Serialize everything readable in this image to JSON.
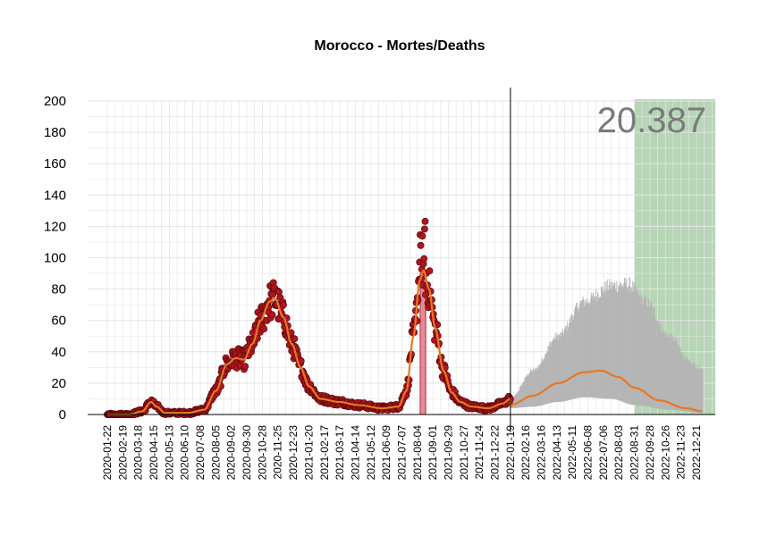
{
  "chart_data": {
    "type": "scatter",
    "title": "Morocco - Mortes/Deaths",
    "xlabel": "",
    "ylabel": "",
    "ylim": [
      0,
      200
    ],
    "yticks": [
      0,
      20,
      40,
      60,
      80,
      100,
      120,
      140,
      160,
      180,
      200
    ],
    "x_range": [
      "2020-01-22",
      "2023-01-24"
    ],
    "x_ticks": [
      "2020-01-22",
      "2020-02-19",
      "2020-03-18",
      "2020-04-15",
      "2020-05-13",
      "2020-06-10",
      "2020-07-08",
      "2020-08-05",
      "2020-09-02",
      "2020-09-30",
      "2020-10-28",
      "2020-11-25",
      "2020-12-23",
      "2021-01-20",
      "2021-02-17",
      "2021-03-17",
      "2021-04-14",
      "2021-05-12",
      "2021-06-09",
      "2021-07-07",
      "2021-08-04",
      "2021-09-01",
      "2021-09-29",
      "2021-10-27",
      "2021-11-24",
      "2021-12-22",
      "2022-01-19",
      "2022-02-16",
      "2022-03-16",
      "2022-04-13",
      "2022-05-11",
      "2022-06-08",
      "2022-07-06",
      "2022-08-03",
      "2022-08-31",
      "2022-09-28",
      "2022-10-26",
      "2022-11-23",
      "2022-12-21"
    ],
    "grid": true,
    "today_line": "2022-01-19",
    "highlight_bar": {
      "start": "2021-08-09",
      "end": "2021-08-19",
      "value": 90,
      "color": "#e08090"
    },
    "forecast_region": {
      "start": "2022-08-31",
      "end": "2023-01-24",
      "color": "#a9cfa9"
    },
    "forecast_total_label": "20.387",
    "colors": {
      "points": "#b0151e",
      "points_outline": "#5a0a0a",
      "smooth": "#e87722",
      "band": "#b5b5b5",
      "grid": "#e5e5e5"
    },
    "observed_anchors": [
      [
        "2020-01-22",
        0
      ],
      [
        "2020-03-01",
        0
      ],
      [
        "2020-03-25",
        2
      ],
      [
        "2020-04-10",
        8
      ],
      [
        "2020-04-20",
        5
      ],
      [
        "2020-05-05",
        1
      ],
      [
        "2020-06-15",
        1
      ],
      [
        "2020-07-15",
        3
      ],
      [
        "2020-08-05",
        15
      ],
      [
        "2020-08-25",
        32
      ],
      [
        "2020-09-10",
        36
      ],
      [
        "2020-09-25",
        35
      ],
      [
        "2020-10-10",
        45
      ],
      [
        "2020-10-25",
        60
      ],
      [
        "2020-11-10",
        72
      ],
      [
        "2020-11-20",
        74
      ],
      [
        "2020-12-05",
        62
      ],
      [
        "2020-12-20",
        45
      ],
      [
        "2021-01-05",
        30
      ],
      [
        "2021-01-20",
        18
      ],
      [
        "2021-02-10",
        10
      ],
      [
        "2021-03-15",
        8
      ],
      [
        "2021-04-20",
        6
      ],
      [
        "2021-06-01",
        4
      ],
      [
        "2021-07-01",
        5
      ],
      [
        "2021-07-15",
        15
      ],
      [
        "2021-07-28",
        50
      ],
      [
        "2021-08-08",
        85
      ],
      [
        "2021-08-15",
        92
      ],
      [
        "2021-08-25",
        80
      ],
      [
        "2021-09-05",
        55
      ],
      [
        "2021-09-20",
        28
      ],
      [
        "2021-10-05",
        14
      ],
      [
        "2021-10-20",
        8
      ],
      [
        "2021-11-10",
        5
      ],
      [
        "2021-12-10",
        4
      ],
      [
        "2022-01-05",
        7
      ],
      [
        "2022-01-19",
        10
      ]
    ],
    "forecast_mean_anchors": [
      [
        "2022-01-19",
        6
      ],
      [
        "2022-03-01",
        12
      ],
      [
        "2022-04-15",
        20
      ],
      [
        "2022-06-01",
        27
      ],
      [
        "2022-07-01",
        28
      ],
      [
        "2022-08-01",
        24
      ],
      [
        "2022-09-01",
        17
      ],
      [
        "2022-10-15",
        9
      ],
      [
        "2022-12-01",
        4
      ],
      [
        "2023-01-01",
        2
      ]
    ],
    "forecast_upper_anchors": [
      [
        "2022-01-19",
        10
      ],
      [
        "2022-03-01",
        28
      ],
      [
        "2022-04-15",
        50
      ],
      [
        "2022-06-01",
        72
      ],
      [
        "2022-07-20",
        82
      ],
      [
        "2022-08-20",
        83
      ],
      [
        "2022-09-20",
        72
      ],
      [
        "2022-11-01",
        50
      ],
      [
        "2022-12-15",
        32
      ],
      [
        "2023-01-01",
        28
      ]
    ],
    "forecast_lower_anchors": [
      [
        "2022-01-19",
        4
      ],
      [
        "2022-03-01",
        5
      ],
      [
        "2022-04-15",
        8
      ],
      [
        "2022-06-01",
        11
      ],
      [
        "2022-07-20",
        10
      ],
      [
        "2022-09-01",
        6
      ],
      [
        "2022-11-01",
        3
      ],
      [
        "2023-01-01",
        1
      ]
    ]
  }
}
